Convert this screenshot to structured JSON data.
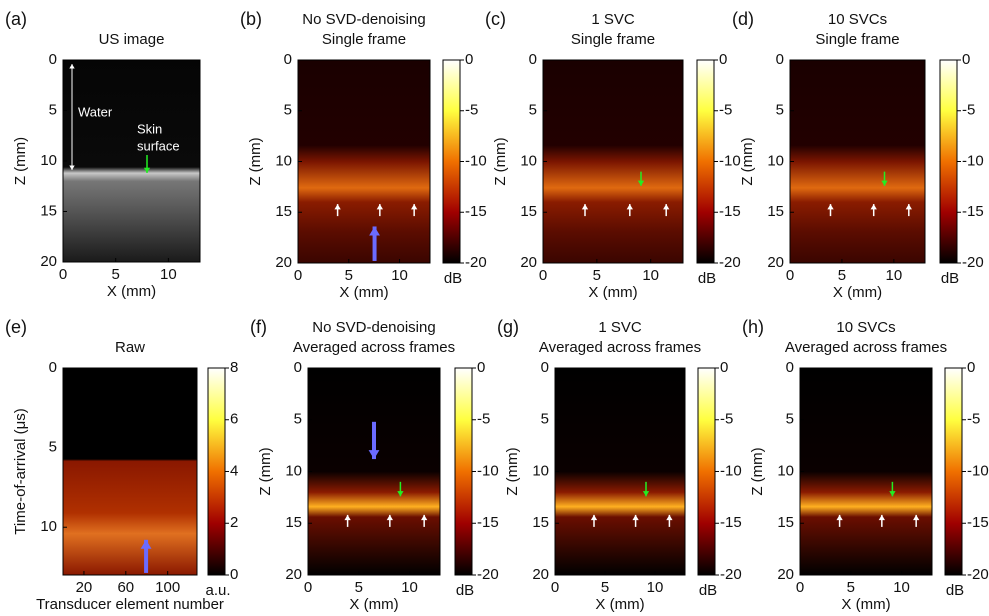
{
  "panels": [
    {
      "letter": "(a)",
      "title": [
        "US image"
      ],
      "xlabel": "X (mm)",
      "ylabel": "Z (mm)",
      "xticks": [
        0,
        5,
        10
      ],
      "yticks": [
        0,
        5,
        10,
        15,
        20
      ],
      "annotations": [
        "Water",
        "Skin",
        "surface"
      ]
    },
    {
      "letter": "(b)",
      "title": [
        "No SVD-denoising",
        "Single frame"
      ],
      "xlabel": "X (mm)",
      "ylabel": "Z (mm)",
      "xticks": [
        0,
        5,
        10
      ],
      "yticks": [
        0,
        5,
        10,
        15,
        20
      ],
      "colorbar": {
        "ticks": [
          0,
          -5,
          -10,
          -15,
          -20
        ],
        "unit": "dB"
      }
    },
    {
      "letter": "(c)",
      "title": [
        "1 SVC",
        "Single frame"
      ],
      "xlabel": "X (mm)",
      "ylabel": "Z (mm)",
      "xticks": [
        0,
        5,
        10
      ],
      "yticks": [
        0,
        5,
        10,
        15,
        20
      ],
      "colorbar": {
        "ticks": [
          0,
          -5,
          -10,
          -15,
          -20
        ],
        "unit": "dB"
      }
    },
    {
      "letter": "(d)",
      "title": [
        "10 SVCs",
        "Single frame"
      ],
      "xlabel": "X (mm)",
      "ylabel": "Z (mm)",
      "xticks": [
        0,
        5,
        10
      ],
      "yticks": [
        0,
        5,
        10,
        15,
        20
      ],
      "colorbar": {
        "ticks": [
          0,
          -5,
          -10,
          -15,
          -20
        ],
        "unit": "dB"
      }
    },
    {
      "letter": "(e)",
      "title": [
        "Raw"
      ],
      "xlabel": "Transducer element number",
      "ylabel": "Time-of-arrival (μs)",
      "xticks": [
        20,
        60,
        100
      ],
      "yticks": [
        0,
        5,
        10
      ],
      "colorbar": {
        "ticks": [
          8,
          6,
          4,
          2,
          0
        ],
        "unit": "a.u."
      }
    },
    {
      "letter": "(f)",
      "title": [
        "No SVD-denoising",
        "Averaged across frames"
      ],
      "xlabel": "X (mm)",
      "ylabel": "Z (mm)",
      "xticks": [
        0,
        5,
        10
      ],
      "yticks": [
        0,
        5,
        10,
        15,
        20
      ],
      "colorbar": {
        "ticks": [
          0,
          -5,
          -10,
          -15,
          -20
        ],
        "unit": "dB"
      }
    },
    {
      "letter": "(g)",
      "title": [
        "1 SVC",
        "Averaged across frames"
      ],
      "xlabel": "X (mm)",
      "ylabel": "Z (mm)",
      "xticks": [
        0,
        5,
        10
      ],
      "yticks": [
        0,
        5,
        10,
        15,
        20
      ],
      "colorbar": {
        "ticks": [
          0,
          -5,
          -10,
          -15,
          -20
        ],
        "unit": "dB"
      }
    },
    {
      "letter": "(h)",
      "title": [
        "10 SVCs",
        "Averaged across frames"
      ],
      "xlabel": "X (mm)",
      "ylabel": "Z (mm)",
      "xticks": [
        0,
        5,
        10
      ],
      "yticks": [
        0,
        5,
        10,
        15,
        20
      ],
      "colorbar": {
        "ticks": [
          0,
          -5,
          -10,
          -15,
          -20
        ],
        "unit": "dB"
      }
    }
  ]
}
